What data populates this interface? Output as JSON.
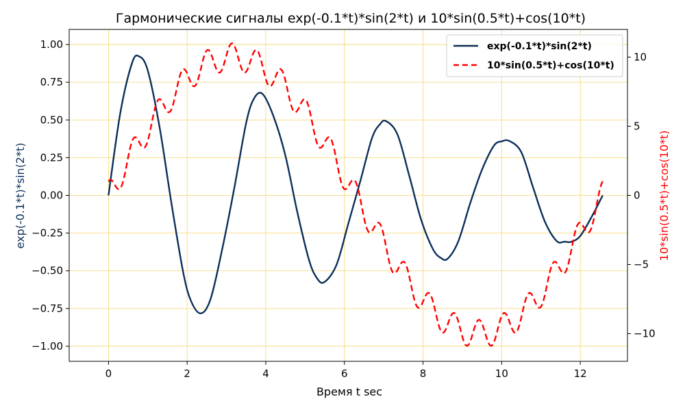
{
  "chart_data": {
    "type": "line",
    "title": "Гармонические сигналы exp(-0.1*t)*sin(2*t) и 10*sin(0.5*t)+cos(10*t)",
    "xlabel": "Время t sec",
    "ylabel_left": "exp(-0.1*t)*sin(2*t)",
    "ylabel_right": "10*sin(0.5*t)+cos(10*t)",
    "xlim": [
      -1.0,
      13.2
    ],
    "ylim_left": [
      -1.1,
      1.1
    ],
    "ylim_right": [
      -12.0,
      12.0
    ],
    "x_ticks": [
      "0",
      "2",
      "4",
      "6",
      "8",
      "10",
      "12"
    ],
    "x_tick_values": [
      0,
      2,
      4,
      6,
      8,
      10,
      12
    ],
    "left_ticks": [
      "1.00",
      "0.75",
      "0.50",
      "0.25",
      "0.00",
      "−0.25",
      "−0.50",
      "−0.75",
      "−1.00"
    ],
    "left_tick_values": [
      1.0,
      0.75,
      0.5,
      0.25,
      0.0,
      -0.25,
      -0.5,
      -0.75,
      -1.0
    ],
    "right_ticks": [
      "10",
      "5",
      "0",
      "−5",
      "−10"
    ],
    "right_tick_values": [
      10,
      5,
      0,
      -5,
      -10
    ],
    "grid": true,
    "legend_position": "top-right",
    "series": [
      {
        "name": "exp(-0.1*t)*sin(2*t)",
        "axis": "left",
        "style": "solid",
        "color": "#0b2e59",
        "x": [
          0,
          0.3,
          0.6,
          0.78,
          1.0,
          1.3,
          1.6,
          1.9,
          2.1,
          2.35,
          2.6,
          2.9,
          3.2,
          3.5,
          3.7,
          3.92,
          4.2,
          4.5,
          4.8,
          5.1,
          5.3,
          5.49,
          5.8,
          6.1,
          6.4,
          6.7,
          6.9,
          7.06,
          7.35,
          7.65,
          7.95,
          8.25,
          8.45,
          8.63,
          8.9,
          9.2,
          9.5,
          9.8,
          10.0,
          10.2,
          10.5,
          10.8,
          11.1,
          11.4,
          11.6,
          11.77,
          12.0,
          12.3,
          12.57
        ],
        "y": [
          0.0,
          0.546,
          0.878,
          0.921,
          0.827,
          0.451,
          -0.051,
          -0.51,
          -0.701,
          -0.782,
          -0.684,
          -0.347,
          0.049,
          0.478,
          0.642,
          0.672,
          0.522,
          0.263,
          -0.108,
          -0.428,
          -0.548,
          -0.575,
          -0.46,
          -0.187,
          0.09,
          0.378,
          0.47,
          0.492,
          0.404,
          0.13,
          -0.16,
          -0.355,
          -0.414,
          -0.419,
          -0.303,
          -0.052,
          0.17,
          0.328,
          0.358,
          0.36,
          0.286,
          0.052,
          -0.174,
          -0.303,
          -0.307,
          -0.308,
          -0.269,
          -0.137,
          0.0
        ]
      },
      {
        "name": "10*sin(0.5*t)+cos(10*t)",
        "axis": "right",
        "style": "dashed",
        "color": "#ff0000"
      }
    ]
  }
}
